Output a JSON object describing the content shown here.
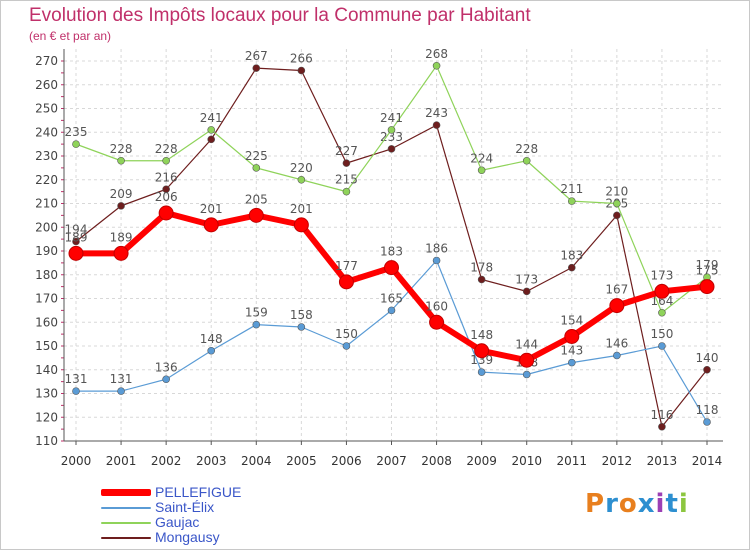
{
  "header": {
    "title": "Evolution des Impôts locaux pour la Commune par Habitant",
    "subtitle": "(en € et par an)"
  },
  "logo": {
    "text": "Proxiti",
    "colors": [
      "#e87f1e",
      "#2d8fd0",
      "#e87f1e",
      "#2d8fd0",
      "#9c3fb5",
      "#2d8fd0",
      "#8cc63f"
    ]
  },
  "chart_data": {
    "type": "line",
    "x": [
      2000,
      2001,
      2002,
      2003,
      2004,
      2005,
      2006,
      2007,
      2008,
      2009,
      2010,
      2011,
      2012,
      2013,
      2014
    ],
    "ylim": [
      110,
      270
    ],
    "yticks": [
      110,
      120,
      130,
      140,
      150,
      160,
      170,
      180,
      190,
      200,
      210,
      220,
      230,
      240,
      250,
      260,
      270
    ],
    "grid": true,
    "legend_position": "bottom-left",
    "series": [
      {
        "name": "Mongausy",
        "color": "#6e1e1e",
        "width": 1.2,
        "marker_radius": 3.5,
        "values": [
          194,
          209,
          216,
          237,
          267,
          266,
          227,
          233,
          243,
          178,
          173,
          183,
          205,
          116,
          140
        ],
        "labels": [
          "194",
          "209",
          "216",
          "",
          "267",
          "266",
          "227",
          "233",
          "243",
          "178",
          "173",
          "183",
          "205",
          "116",
          "140"
        ]
      },
      {
        "name": "Gaujac",
        "color": "#8fd35a",
        "width": 1.2,
        "marker_radius": 3.5,
        "values": [
          235,
          228,
          228,
          241,
          225,
          220,
          215,
          241,
          268,
          224,
          228,
          211,
          210,
          164,
          179
        ],
        "labels": [
          "235",
          "228",
          "228",
          "241",
          "225",
          "220",
          "215",
          "241",
          "268",
          "224",
          "228",
          "211",
          "210",
          "164",
          "179"
        ]
      },
      {
        "name": "Saint-Élix",
        "color": "#5a9bd5",
        "width": 1.2,
        "marker_radius": 3.5,
        "values": [
          131,
          131,
          136,
          148,
          159,
          158,
          150,
          165,
          186,
          139,
          138,
          143,
          146,
          150,
          118
        ],
        "labels": [
          "131",
          "131",
          "136",
          "148",
          "159",
          "158",
          "150",
          "165",
          "186",
          "139",
          "138",
          "143",
          "146",
          "150",
          "118"
        ]
      },
      {
        "name": "PELLEFIGUE",
        "color": "#ff0000",
        "width": 6,
        "marker_radius": 7,
        "values": [
          189,
          189,
          206,
          201,
          205,
          201,
          177,
          183,
          160,
          148,
          144,
          154,
          167,
          173,
          175
        ],
        "labels": [
          "189",
          "189",
          "206",
          "201",
          "205",
          "201",
          "177",
          "183",
          "160",
          "148",
          "144",
          "154",
          "167",
          "173",
          "175"
        ]
      }
    ],
    "legend_order": [
      "PELLEFIGUE",
      "Saint-Élix",
      "Gaujac",
      "Mongausy"
    ]
  }
}
